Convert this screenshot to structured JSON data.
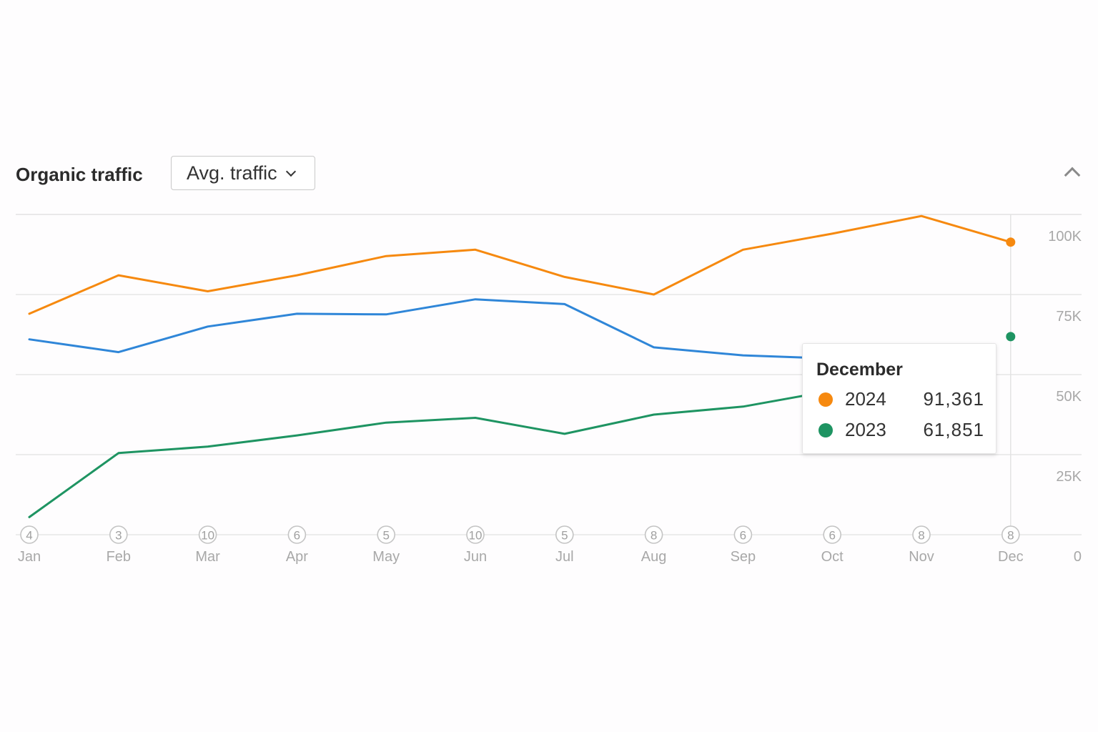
{
  "header": {
    "title": "Organic traffic",
    "dropdown_label": "Avg. traffic"
  },
  "tooltip": {
    "month": "December",
    "rows": [
      {
        "year": "2024",
        "value": "91,361",
        "color": "#f6890f"
      },
      {
        "year": "2023",
        "value": "61,851",
        "color": "#1e9462"
      }
    ]
  },
  "chart_data": {
    "type": "line",
    "categories": [
      "Jan",
      "Feb",
      "Mar",
      "Apr",
      "May",
      "Jun",
      "Jul",
      "Aug",
      "Sep",
      "Oct",
      "Nov",
      "Dec"
    ],
    "annotation_counts": [
      "4",
      "3",
      "10",
      "6",
      "5",
      "10",
      "5",
      "8",
      "6",
      "6",
      "8",
      "8"
    ],
    "y_ticks": [
      {
        "value": 0,
        "label": "0"
      },
      {
        "value": 25000,
        "label": "25K"
      },
      {
        "value": 50000,
        "label": "50K"
      },
      {
        "value": 75000,
        "label": "75K"
      },
      {
        "value": 100000,
        "label": "100K"
      }
    ],
    "ylim": [
      0,
      100000
    ],
    "grid": true,
    "series": [
      {
        "name": "2024",
        "color": "#f6890f",
        "values": [
          69000,
          81000,
          76000,
          81000,
          87000,
          89000,
          80500,
          75000,
          89000,
          94000,
          99500,
          91361
        ]
      },
      {
        "name": "",
        "color": "#2f86d8",
        "values": [
          61000,
          57000,
          65000,
          69000,
          68800,
          73500,
          72000,
          58500,
          56000,
          55000,
          null,
          null
        ]
      },
      {
        "name": "2023",
        "color": "#1e9462",
        "values": [
          5500,
          25500,
          27500,
          31000,
          35000,
          36500,
          31500,
          37500,
          40000,
          45000,
          null,
          61851
        ]
      }
    ],
    "highlight_index": 11
  }
}
